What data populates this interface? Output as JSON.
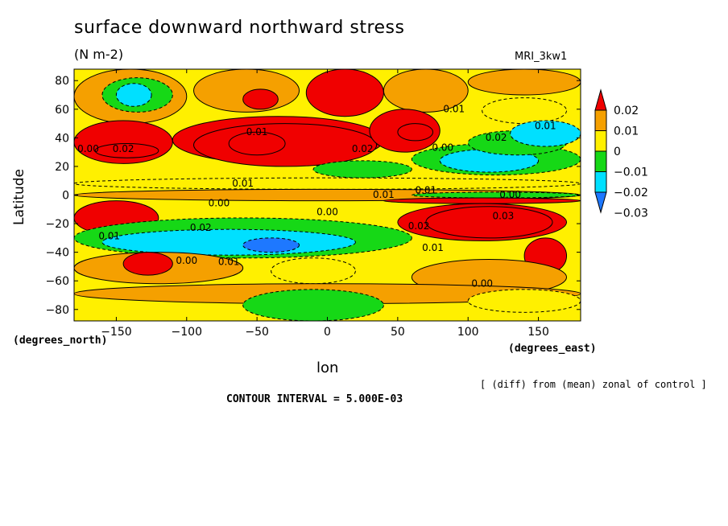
{
  "chart_data": {
    "type": "heatmap",
    "title": "surface downward northward stress",
    "units": "(N m-2)",
    "model": "MRI_3kw1",
    "xlabel": "lon",
    "ylabel": "Latitude",
    "x_unit_label": "(degrees_east)",
    "y_unit_label": "(degrees_north)",
    "note": "[ (diff) from (mean) zonal of control ]",
    "contour_interval_text": "CONTOUR INTERVAL = 5.000E-03",
    "xlim": [
      -180,
      180
    ],
    "ylim": [
      -88,
      88
    ],
    "x_ticks": [
      -150,
      -100,
      -50,
      0,
      50,
      100,
      150
    ],
    "y_ticks": [
      -80,
      -60,
      -40,
      -20,
      0,
      20,
      40,
      60,
      80
    ],
    "colorbar": {
      "levels": [
        -0.03,
        -0.02,
        -0.01,
        0,
        0.01,
        0.02
      ],
      "labels": [
        "−0.03",
        "−0.02",
        "−0.01",
        "0",
        "0.01",
        "0.02"
      ],
      "colors": [
        "#1e78ff",
        "#00e0ff",
        "#16d816",
        "#fff000",
        "#f5a000",
        "#f00000"
      ]
    },
    "contour_labels": [
      {
        "text": "0.01",
        "lon": 90,
        "lat": 60
      },
      {
        "text": "0.01",
        "lon": -50,
        "lat": 44
      },
      {
        "text": "0.02",
        "lon": 120,
        "lat": 40
      },
      {
        "text": "0.01",
        "lon": 155,
        "lat": 48
      },
      {
        "text": "0.00",
        "lon": -170,
        "lat": 32
      },
      {
        "text": "0.02",
        "lon": -145,
        "lat": 32
      },
      {
        "text": "0.02",
        "lon": 25,
        "lat": 32
      },
      {
        "text": "0.00",
        "lon": 82,
        "lat": 33
      },
      {
        "text": "0.01",
        "lon": -60,
        "lat": 8
      },
      {
        "text": "0.01",
        "lon": 40,
        "lat": 0
      },
      {
        "text": "0.01",
        "lon": 70,
        "lat": 3
      },
      {
        "text": "0.00",
        "lon": 130,
        "lat": 0
      },
      {
        "text": "0.00",
        "lon": -77,
        "lat": -6
      },
      {
        "text": "0.00",
        "lon": 0,
        "lat": -12
      },
      {
        "text": "0.03",
        "lon": 125,
        "lat": -15
      },
      {
        "text": "0.02",
        "lon": -90,
        "lat": -23
      },
      {
        "text": "0.02",
        "lon": 65,
        "lat": -22
      },
      {
        "text": "0.01",
        "lon": -155,
        "lat": -29
      },
      {
        "text": "0.00",
        "lon": -100,
        "lat": -46
      },
      {
        "text": "0.01",
        "lon": -70,
        "lat": -47
      },
      {
        "text": "0.01",
        "lon": 75,
        "lat": -37
      },
      {
        "text": "0.00",
        "lon": 110,
        "lat": -62
      }
    ],
    "field_regions": [
      {
        "lon": [
          -180,
          180
        ],
        "lat": [
          -88,
          88
        ],
        "value": -0.005
      },
      {
        "lon": [
          -180,
          -100
        ],
        "lat": [
          50,
          88
        ],
        "value": 0.005
      },
      {
        "lon": [
          -160,
          -110
        ],
        "lat": [
          58,
          82
        ],
        "value": -0.015
      },
      {
        "lon": [
          -150,
          -125
        ],
        "lat": [
          62,
          78
        ],
        "value": -0.025
      },
      {
        "lon": [
          -95,
          -20
        ],
        "lat": [
          58,
          88
        ],
        "value": 0.005
      },
      {
        "lon": [
          -60,
          -35
        ],
        "lat": [
          60,
          74
        ],
        "value": 0.015
      },
      {
        "lon": [
          -15,
          40
        ],
        "lat": [
          55,
          88
        ],
        "value": 0.015
      },
      {
        "lon": [
          40,
          100
        ],
        "lat": [
          58,
          88
        ],
        "value": 0.005
      },
      {
        "lon": [
          100,
          180
        ],
        "lat": [
          70,
          88
        ],
        "value": 0.005
      },
      {
        "lon": [
          110,
          170
        ],
        "lat": [
          50,
          68
        ],
        "value": -0.005
      },
      {
        "lon": [
          -180,
          -110
        ],
        "lat": [
          22,
          52
        ],
        "value": 0.015
      },
      {
        "lon": [
          -165,
          -120
        ],
        "lat": [
          26,
          36
        ],
        "value": 0.025
      },
      {
        "lon": [
          -110,
          40
        ],
        "lat": [
          22,
          55
        ],
        "value": 0.015
      },
      {
        "lon": [
          -95,
          35
        ],
        "lat": [
          20,
          50
        ],
        "value": 0.025
      },
      {
        "lon": [
          -70,
          -30
        ],
        "lat": [
          28,
          44
        ],
        "value": 0.035
      },
      {
        "lon": [
          30,
          80
        ],
        "lat": [
          30,
          60
        ],
        "value": 0.015
      },
      {
        "lon": [
          50,
          75
        ],
        "lat": [
          38,
          50
        ],
        "value": 0.025
      },
      {
        "lon": [
          60,
          180
        ],
        "lat": [
          14,
          36
        ],
        "value": -0.015
      },
      {
        "lon": [
          80,
          150
        ],
        "lat": [
          16,
          32
        ],
        "value": -0.025
      },
      {
        "lon": [
          100,
          170
        ],
        "lat": [
          28,
          45
        ],
        "value": -0.015
      },
      {
        "lon": [
          130,
          180
        ],
        "lat": [
          34,
          52
        ],
        "value": -0.025
      },
      {
        "lon": [
          -10,
          60
        ],
        "lat": [
          12,
          24
        ],
        "value": -0.015
      },
      {
        "lon": [
          -180,
          180
        ],
        "lat": [
          4,
          12
        ],
        "value": -0.005
      },
      {
        "lon": [
          -180,
          180
        ],
        "lat": [
          -4,
          4
        ],
        "value": 0.005
      },
      {
        "lon": [
          60,
          180
        ],
        "lat": [
          -2,
          2
        ],
        "value": -0.015
      },
      {
        "lon": [
          40,
          180
        ],
        "lat": [
          -6,
          -2
        ],
        "value": 0.015
      },
      {
        "lon": [
          50,
          170
        ],
        "lat": [
          -32,
          -6
        ],
        "value": 0.025
      },
      {
        "lon": [
          70,
          160
        ],
        "lat": [
          -30,
          -8
        ],
        "value": 0.035
      },
      {
        "lon": [
          140,
          170
        ],
        "lat": [
          -55,
          -30
        ],
        "value": 0.025
      },
      {
        "lon": [
          -180,
          -120
        ],
        "lat": [
          -28,
          -4
        ],
        "value": 0.015
      },
      {
        "lon": [
          -180,
          60
        ],
        "lat": [
          -44,
          -16
        ],
        "value": -0.015
      },
      {
        "lon": [
          -160,
          20
        ],
        "lat": [
          -42,
          -24
        ],
        "value": -0.025
      },
      {
        "lon": [
          -60,
          -20
        ],
        "lat": [
          -40,
          -30
        ],
        "value": -0.035
      },
      {
        "lon": [
          -180,
          -60
        ],
        "lat": [
          -62,
          -40
        ],
        "value": 0.005
      },
      {
        "lon": [
          -145,
          -110
        ],
        "lat": [
          -56,
          -40
        ],
        "value": 0.025
      },
      {
        "lon": [
          -40,
          20
        ],
        "lat": [
          -62,
          -44
        ],
        "value": -0.005
      },
      {
        "lon": [
          60,
          170
        ],
        "lat": [
          -70,
          -45
        ],
        "value": 0.005
      },
      {
        "lon": [
          -180,
          180
        ],
        "lat": [
          -76,
          -62
        ],
        "value": 0.005
      },
      {
        "lon": [
          -60,
          40
        ],
        "lat": [
          -88,
          -66
        ],
        "value": -0.015
      },
      {
        "lon": [
          100,
          180
        ],
        "lat": [
          -82,
          -66
        ],
        "value": -0.005
      }
    ]
  }
}
